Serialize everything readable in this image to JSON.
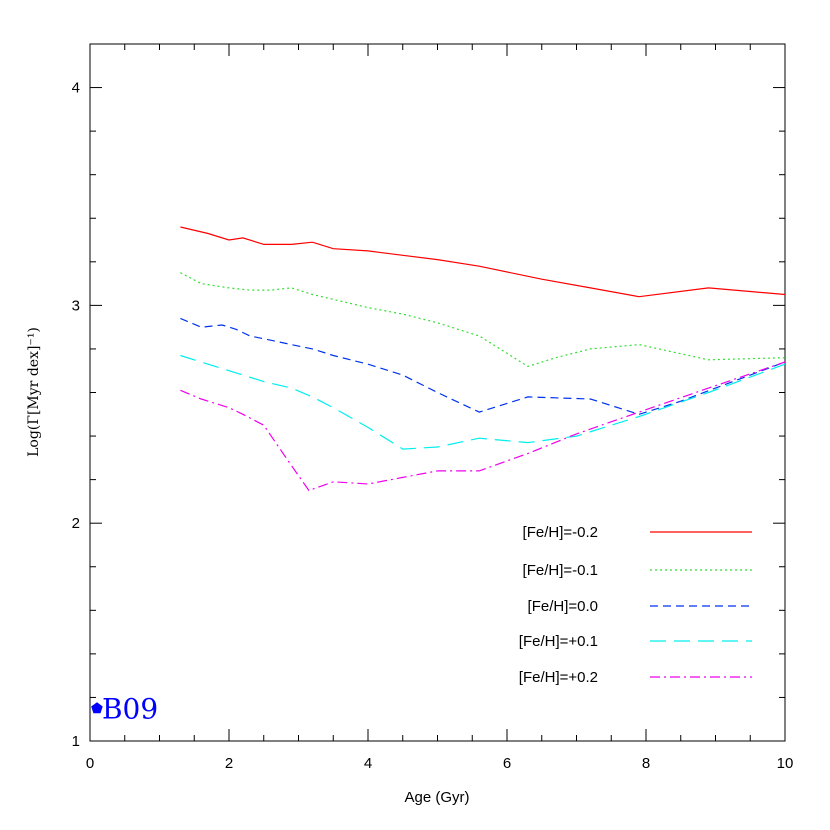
{
  "chart_data": {
    "type": "line",
    "xlabel": "Age (Gyr)",
    "ylabel": "Log(Γ[Myr dex]⁻¹)",
    "xlim": [
      0,
      10
    ],
    "ylim": [
      1,
      4.2
    ],
    "xticks": [
      0,
      2,
      4,
      6,
      8,
      10
    ],
    "yticks": [
      1,
      2,
      3,
      4
    ],
    "legend_position": "bottom-right",
    "series": [
      {
        "name": "[Fe/H]=-0.2",
        "color": "#ff0000",
        "dash": "solid",
        "x": [
          1.3,
          1.7,
          2.0,
          2.2,
          2.5,
          2.9,
          3.2,
          3.5,
          4.0,
          4.5,
          5.0,
          5.6,
          6.5,
          7.2,
          7.9,
          8.9,
          10.0
        ],
        "y": [
          3.36,
          3.33,
          3.3,
          3.31,
          3.28,
          3.28,
          3.29,
          3.26,
          3.25,
          3.23,
          3.21,
          3.18,
          3.12,
          3.08,
          3.04,
          3.08,
          3.05
        ]
      },
      {
        "name": "[Fe/H]=-0.1",
        "color": "#33dd33",
        "dash": "dotted",
        "x": [
          1.3,
          1.6,
          2.0,
          2.3,
          2.6,
          2.9,
          3.2,
          3.6,
          4.0,
          4.5,
          5.0,
          5.6,
          6.3,
          6.7,
          7.2,
          7.9,
          8.9,
          10.0
        ],
        "y": [
          3.15,
          3.1,
          3.08,
          3.07,
          3.07,
          3.08,
          3.05,
          3.02,
          2.99,
          2.96,
          2.92,
          2.86,
          2.72,
          2.76,
          2.8,
          2.82,
          2.75,
          2.76
        ]
      },
      {
        "name": "[Fe/H]=0.0",
        "color": "#0033ee",
        "dash": "dashed",
        "x": [
          1.3,
          1.6,
          1.9,
          2.1,
          2.3,
          2.6,
          2.9,
          3.2,
          3.5,
          4.0,
          4.5,
          5.0,
          5.6,
          6.3,
          7.2,
          7.9,
          8.5,
          9.0,
          10.0
        ],
        "y": [
          2.94,
          2.9,
          2.91,
          2.89,
          2.86,
          2.84,
          2.82,
          2.8,
          2.77,
          2.73,
          2.68,
          2.6,
          2.51,
          2.58,
          2.57,
          2.5,
          2.56,
          2.62,
          2.74
        ]
      },
      {
        "name": "[Fe/H]=+0.1",
        "color": "#00eeee",
        "dash": "long-dash",
        "x": [
          1.3,
          1.7,
          2.0,
          2.5,
          2.9,
          3.2,
          3.5,
          4.0,
          4.5,
          5.0,
          5.6,
          6.3,
          7.0,
          7.9,
          8.9,
          10.0
        ],
        "y": [
          2.77,
          2.73,
          2.7,
          2.65,
          2.62,
          2.58,
          2.53,
          2.44,
          2.34,
          2.35,
          2.39,
          2.37,
          2.4,
          2.49,
          2.6,
          2.73
        ]
      },
      {
        "name": "[Fe/H]=+0.2",
        "color": "#ee00ee",
        "dash": "dash-dot",
        "x": [
          1.3,
          1.6,
          2.0,
          2.2,
          2.5,
          2.8,
          3.15,
          3.5,
          4.0,
          4.5,
          5.0,
          5.6,
          6.3,
          7.0,
          7.9,
          8.9,
          10.0
        ],
        "y": [
          2.61,
          2.57,
          2.53,
          2.5,
          2.45,
          2.31,
          2.15,
          2.19,
          2.18,
          2.21,
          2.24,
          2.24,
          2.32,
          2.41,
          2.51,
          2.62,
          2.74
        ]
      }
    ],
    "markers": [
      {
        "label": "B09",
        "x": 0.1,
        "y": 1.15,
        "color": "#0000ff",
        "shape": "pentagon"
      }
    ]
  }
}
